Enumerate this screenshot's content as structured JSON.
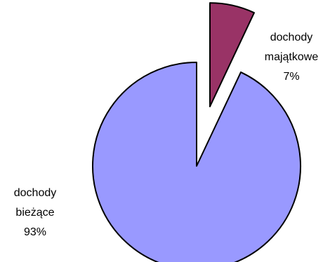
{
  "chart_data": {
    "type": "pie",
    "exploded": "dochody majątkowe",
    "slices": [
      {
        "label_lines": [
          "dochody",
          "majątkowe"
        ],
        "value": 7,
        "value_label": "7%",
        "color": "#993366"
      },
      {
        "label_lines": [
          "dochody",
          "bieżące"
        ],
        "value": 93,
        "value_label": "93%",
        "color": "#9999ff"
      }
    ],
    "outline_color": "#000000"
  }
}
